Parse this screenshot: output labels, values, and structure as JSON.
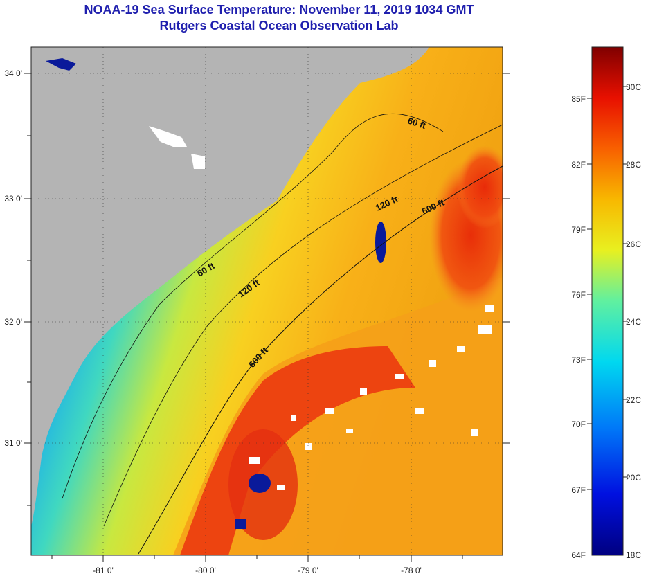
{
  "header": {
    "title": "NOAA-19 Sea Surface Temperature:  November 11, 2019 1034 GMT",
    "subtitle": "Rutgers Coastal Ocean Observation Lab"
  },
  "map": {
    "lon_ticks": [
      "-81 0'",
      "-80 0'",
      "-79 0'",
      "-78 0'"
    ],
    "lat_ticks": [
      "34 0'",
      "33 0'",
      "32 0'",
      "31 0'"
    ],
    "isobaths": {
      "shelf_60": "60 ft",
      "coast_60": "60 ft",
      "mid_120": "120 ft",
      "upper_120": "120 ft",
      "upper_600": "600 ft",
      "lower_600": "600 ft"
    }
  },
  "colorbar": {
    "fahrenheit": [
      "85F",
      "82F",
      "79F",
      "76F",
      "73F",
      "70F",
      "67F",
      "64F"
    ],
    "celsius": [
      "30C",
      "28C",
      "26C",
      "24C",
      "22C",
      "20C",
      "18C"
    ]
  },
  "colors": {
    "land": "#b4b4b4",
    "title": "#1f1fae",
    "cold": "#0a1a9a",
    "warm": "#e83010"
  }
}
